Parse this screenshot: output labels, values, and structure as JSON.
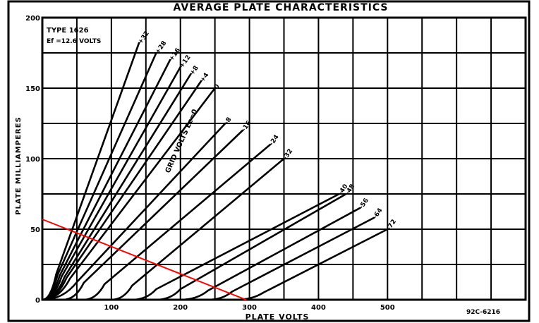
{
  "chart_data": {
    "type": "line",
    "title": "AVERAGE PLATE CHARACTERISTICS",
    "xlabel": "PLATE VOLTS",
    "ylabel": "PLATE MILLIAMPERES",
    "xlim": [
      0,
      700
    ],
    "ylim": [
      0,
      200
    ],
    "grid": true,
    "x_ticks": [
      "100",
      "200",
      "300",
      "400",
      "500"
    ],
    "y_ticks": [
      "0",
      "50",
      "100",
      "150",
      "200"
    ],
    "annotations": {
      "type": "TYPE 1626",
      "ef": "Ef =12.6 VOLTS",
      "grid_volts": "GRID VOLTS Ec=0",
      "figure_id": "92C-6216"
    },
    "series": [
      {
        "name": "+32",
        "x0": 0,
        "knee": 20,
        "x_end": 140,
        "y_end": 182
      },
      {
        "name": "+28",
        "x0": 0,
        "knee": 22,
        "x_end": 165,
        "y_end": 175
      },
      {
        "name": "+16",
        "x0": 0,
        "knee": 25,
        "x_end": 185,
        "y_end": 170
      },
      {
        "name": "+12",
        "x0": 0,
        "knee": 28,
        "x_end": 200,
        "y_end": 165
      },
      {
        "name": "+8",
        "x0": 0,
        "knee": 32,
        "x_end": 215,
        "y_end": 160
      },
      {
        "name": "+4",
        "x0": 0,
        "knee": 35,
        "x_end": 230,
        "y_end": 155
      },
      {
        "name": "0",
        "x0": 0,
        "knee": 40,
        "x_end": 250,
        "y_end": 150
      },
      {
        "name": "-8",
        "x0": 0,
        "knee": 50,
        "x_end": 265,
        "y_end": 125
      },
      {
        "name": "-16",
        "x0": 30,
        "knee": 60,
        "x_end": 290,
        "y_end": 120
      },
      {
        "name": "-24",
        "x0": 60,
        "knee": 90,
        "x_end": 330,
        "y_end": 110
      },
      {
        "name": "-32",
        "x0": 100,
        "knee": 130,
        "x_end": 350,
        "y_end": 100
      },
      {
        "name": "-40",
        "x0": 130,
        "knee": 165,
        "x_end": 430,
        "y_end": 75
      },
      {
        "name": "-48",
        "x0": 165,
        "knee": 200,
        "x_end": 440,
        "y_end": 75
      },
      {
        "name": "-56",
        "x0": 200,
        "knee": 240,
        "x_end": 460,
        "y_end": 65
      },
      {
        "name": "-64",
        "x0": 240,
        "knee": 275,
        "x_end": 480,
        "y_end": 58
      },
      {
        "name": "-72",
        "x0": 280,
        "knee": 320,
        "x_end": 500,
        "y_end": 50
      }
    ],
    "load_line": {
      "color": "#ff0000",
      "points": [
        [
          0,
          57
        ],
        [
          295,
          0
        ]
      ]
    }
  }
}
